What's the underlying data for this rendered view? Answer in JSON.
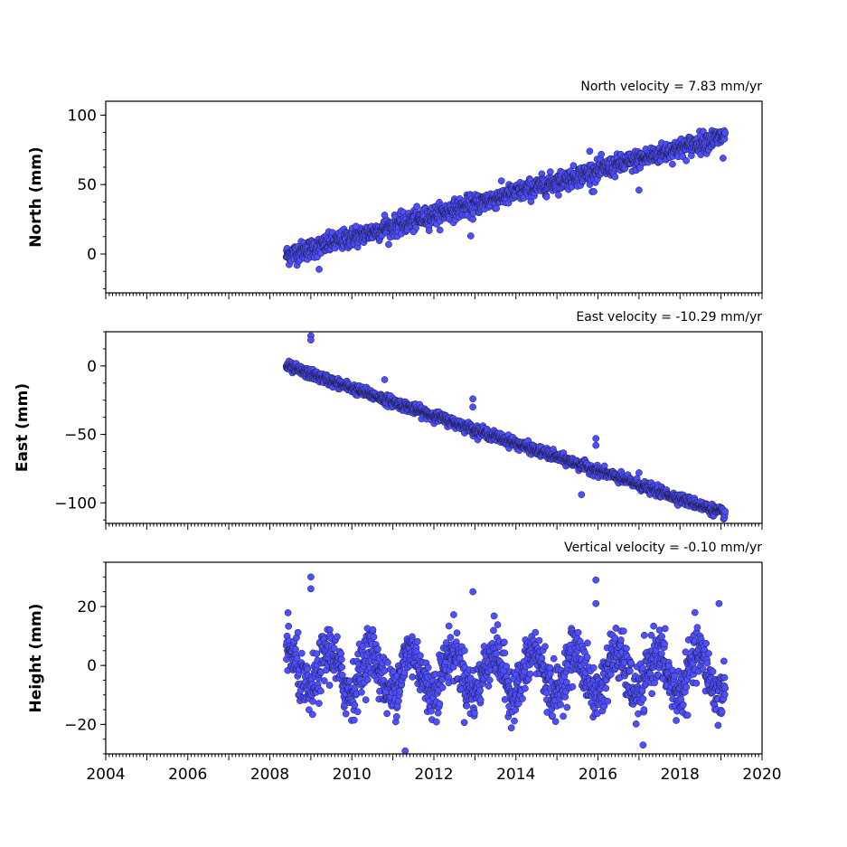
{
  "chart_data": [
    {
      "type": "scatter",
      "title": "North velocity = 7.83 mm/yr",
      "ylabel": "North (mm)",
      "xlim": [
        2004,
        2020
      ],
      "ylim": [
        -28,
        110
      ],
      "yticks": [
        0,
        50,
        100
      ],
      "tick_labels": [
        "0",
        "50",
        "100"
      ],
      "color": "#4f4fff",
      "series": [
        {
          "trend": {
            "start_year": 2008.4,
            "end_year": 2019.1,
            "start_value": -1,
            "end_value": 85
          },
          "scatter_sd": 3.5,
          "outliers": [
            {
              "x": 2009.2,
              "y": -11
            },
            {
              "x": 2010.1,
              "y": 20
            },
            {
              "x": 2010.8,
              "y": 28
            },
            {
              "x": 2011.5,
              "y": 16
            },
            {
              "x": 2012.9,
              "y": 13
            },
            {
              "x": 2012.95,
              "y": 25
            },
            {
              "x": 2015.8,
              "y": 74
            },
            {
              "x": 2015.9,
              "y": 45
            },
            {
              "x": 2017.0,
              "y": 46
            },
            {
              "x": 2019.05,
              "y": 69
            }
          ]
        }
      ]
    },
    {
      "type": "scatter",
      "title": "East velocity = -10.29 mm/yr",
      "ylabel": "East (mm)",
      "xlim": [
        2004,
        2020
      ],
      "ylim": [
        -115,
        25
      ],
      "yticks": [
        -100,
        -50,
        0
      ],
      "tick_labels": [
        "−100",
        "−50",
        "0"
      ],
      "color": "#4f4fff",
      "series": [
        {
          "trend": {
            "start_year": 2008.4,
            "end_year": 2019.1,
            "start_value": 0,
            "end_value": -108
          },
          "scatter_sd": 1.8,
          "outliers": [
            {
              "x": 2009.0,
              "y": 22
            },
            {
              "x": 2009.0,
              "y": 19
            },
            {
              "x": 2010.8,
              "y": -10
            },
            {
              "x": 2012.95,
              "y": -24
            },
            {
              "x": 2012.95,
              "y": -30
            },
            {
              "x": 2015.6,
              "y": -94
            },
            {
              "x": 2015.95,
              "y": -53
            },
            {
              "x": 2015.95,
              "y": -58
            },
            {
              "x": 2017.0,
              "y": -78
            }
          ]
        }
      ]
    },
    {
      "type": "scatter",
      "title": "Vertical velocity = -0.10 mm/yr",
      "ylabel": "Height (mm)",
      "xlim": [
        2004,
        2020
      ],
      "ylim": [
        -30,
        35
      ],
      "yticks": [
        -20,
        0,
        20
      ],
      "tick_labels": [
        "−20",
        "0",
        "20"
      ],
      "xticks": [
        2004,
        2006,
        2008,
        2010,
        2012,
        2014,
        2016,
        2018,
        2020
      ],
      "xtick_labels": [
        "2004",
        "2006",
        "2008",
        "2010",
        "2012",
        "2014",
        "2016",
        "2018",
        "2020"
      ],
      "color": "#4f4fff",
      "series": [
        {
          "trend": {
            "start_year": 2008.4,
            "end_year": 2019.1,
            "start_value": -2,
            "end_value": -3
          },
          "seasonal_amplitude_mm": 7,
          "scatter_sd": 4.5,
          "outliers": [
            {
              "x": 2009.0,
              "y": 30
            },
            {
              "x": 2009.0,
              "y": 26
            },
            {
              "x": 2012.95,
              "y": 25
            },
            {
              "x": 2015.95,
              "y": 29
            },
            {
              "x": 2015.95,
              "y": 21
            },
            {
              "x": 2018.95,
              "y": 21
            },
            {
              "x": 2011.3,
              "y": -29
            },
            {
              "x": 2017.1,
              "y": -27
            }
          ]
        }
      ]
    }
  ]
}
